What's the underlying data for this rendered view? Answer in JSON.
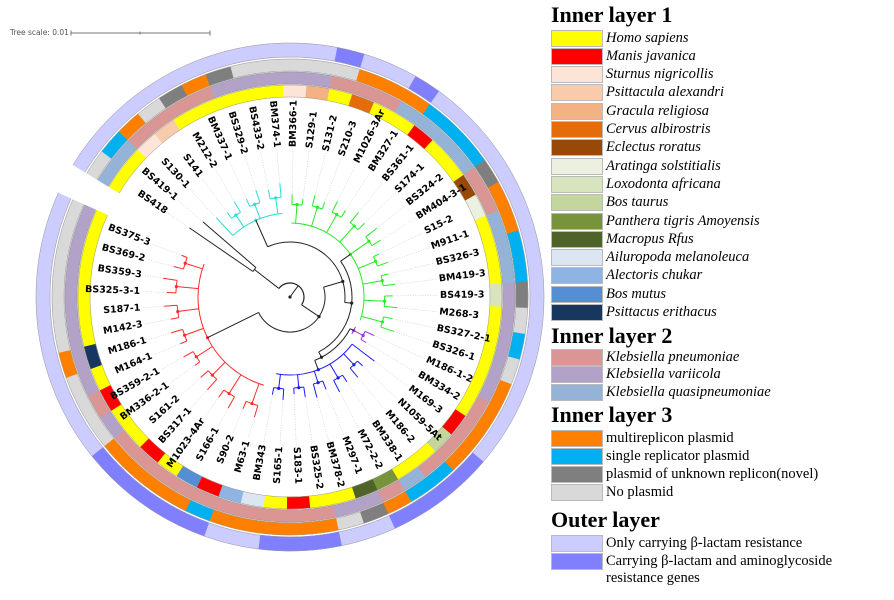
{
  "tree": {
    "scale_label": "Tree scale: 0.01",
    "clade_colors": {
      "red": "#ff2a2a",
      "blue": "#1a1aff",
      "purple": "#9933dd",
      "green": "#22ee22",
      "cyan": "#22e0d0",
      "black": "#222222"
    },
    "leaves": [
      {
        "label": "BS375-3",
        "host": "H",
        "species": "Kv",
        "plasmid": "N",
        "res": "A"
      },
      {
        "label": "BS369-2",
        "host": "H",
        "species": "Kv",
        "plasmid": "N",
        "res": "A"
      },
      {
        "label": "BS359-3",
        "host": "H",
        "species": "Kv",
        "plasmid": "N",
        "res": "A"
      },
      {
        "label": "BS325-3-1",
        "host": "H",
        "species": "Kv",
        "plasmid": "N",
        "res": "A"
      },
      {
        "label": "S187-1",
        "host": "H",
        "species": "Kv",
        "plasmid": "N",
        "res": "A"
      },
      {
        "label": "M142-3",
        "host": "H",
        "species": "Kv",
        "plasmid": "N",
        "res": "A"
      },
      {
        "label": "M186-1",
        "host": "Pe",
        "species": "Kv",
        "plasmid": "MR",
        "res": "A"
      },
      {
        "label": "M164-1",
        "host": "H",
        "species": "Kv",
        "plasmid": "N",
        "res": "A"
      },
      {
        "label": "BS359-2-1",
        "host": "M",
        "species": "Kp",
        "plasmid": "N",
        "res": "A"
      },
      {
        "label": "BM336-2-1",
        "host": "H",
        "species": "Kv",
        "plasmid": "N",
        "res": "A"
      },
      {
        "label": "S161-2",
        "host": "H",
        "species": "Kp",
        "plasmid": "MR",
        "res": "B"
      },
      {
        "label": "BS317-1",
        "host": "M",
        "species": "Kp",
        "plasmid": "MR",
        "res": "B"
      },
      {
        "label": "M1023-4Ar",
        "host": "H",
        "species": "Kp",
        "plasmid": "MR",
        "res": "B"
      },
      {
        "label": "S166-1",
        "host": "Bm",
        "species": "Kp",
        "plasmid": "MR",
        "res": "B"
      },
      {
        "label": "S90-2",
        "host": "M",
        "species": "Kp",
        "plasmid": "SR",
        "res": "B"
      },
      {
        "label": "M63-1",
        "host": "Al",
        "species": "Kp",
        "plasmid": "MR",
        "res": "A"
      },
      {
        "label": "BM343",
        "host": "Ai",
        "species": "Kp",
        "plasmid": "MR",
        "res": "A"
      },
      {
        "label": "S165-1",
        "host": "H",
        "species": "Kp",
        "plasmid": "MR",
        "res": "B"
      },
      {
        "label": "S183-1",
        "host": "M",
        "species": "Kp",
        "plasmid": "MR",
        "res": "B"
      },
      {
        "label": "BS325-2",
        "host": "H",
        "species": "Kp",
        "plasmid": "MR",
        "res": "B"
      },
      {
        "label": "BM378-2",
        "host": "H",
        "species": "Kv",
        "plasmid": "N",
        "res": "A"
      },
      {
        "label": "M297-1",
        "host": "Ma",
        "species": "Kv",
        "plasmid": "UK",
        "res": "A"
      },
      {
        "label": "M72-2-2",
        "host": "Pt",
        "species": "Kp",
        "plasmid": "MR",
        "res": "B"
      },
      {
        "label": "BM338-1",
        "host": "H",
        "species": "Kq",
        "plasmid": "SR",
        "res": "B"
      },
      {
        "label": "M186-2",
        "host": "H",
        "species": "Kp",
        "plasmid": "SR",
        "res": "B"
      },
      {
        "label": "N1059-5At",
        "host": "Bt",
        "species": "Kp",
        "plasmid": "MR",
        "res": "B"
      },
      {
        "label": "M169-3",
        "host": "M",
        "species": "Kp",
        "plasmid": "MR",
        "res": "A"
      },
      {
        "label": "BM334-2",
        "host": "H",
        "species": "Kp",
        "plasmid": "MR",
        "res": "A"
      },
      {
        "label": "M186-1-2",
        "host": "H",
        "species": "Kv",
        "plasmid": "MR",
        "res": "A"
      },
      {
        "label": "BS326-1",
        "host": "H",
        "species": "Kv",
        "plasmid": "N",
        "res": "A"
      },
      {
        "label": "BS327-2-1",
        "host": "H",
        "species": "Kv",
        "plasmid": "SR",
        "res": "A"
      },
      {
        "label": "M268-3",
        "host": "H",
        "species": "Kv",
        "plasmid": "N",
        "res": "A"
      },
      {
        "label": "BS419-3",
        "host": "Lo",
        "species": "Kv",
        "plasmid": "UK",
        "res": "A"
      },
      {
        "label": "BM419-3",
        "host": "H",
        "species": "Kq",
        "plasmid": "SR",
        "res": "A"
      },
      {
        "label": "BS326-3",
        "host": "H",
        "species": "Kq",
        "plasmid": "SR",
        "res": "A"
      },
      {
        "label": "M911-1",
        "host": "H",
        "species": "Kq",
        "plasmid": "MR",
        "res": "A"
      },
      {
        "label": "S15-2",
        "host": "Ar",
        "species": "Kp",
        "plasmid": "MR",
        "res": "A"
      },
      {
        "label": "BM404-3-1",
        "host": "Ec",
        "species": "Kp",
        "plasmid": "UK",
        "res": "A"
      },
      {
        "label": "BS324-2",
        "host": "H",
        "species": "Kq",
        "plasmid": "SR",
        "res": "A"
      },
      {
        "label": "S174-1",
        "host": "H",
        "species": "Kq",
        "plasmid": "SR",
        "res": "A"
      },
      {
        "label": "BS361-1",
        "host": "M",
        "species": "Kq",
        "plasmid": "SR",
        "res": "A"
      },
      {
        "label": "BM327-1",
        "host": "H",
        "species": "Kq",
        "plasmid": "MR",
        "res": "B"
      },
      {
        "label": "M1026-3Ar",
        "host": "H",
        "species": "Kp",
        "plasmid": "MR",
        "res": "A"
      },
      {
        "label": "S210-3",
        "host": "Ce",
        "species": "Kp",
        "plasmid": "MR",
        "res": "A"
      },
      {
        "label": "S131-2",
        "host": "H",
        "species": "Kp",
        "plasmid": "N",
        "res": "B"
      },
      {
        "label": "S129-1",
        "host": "Gr",
        "species": "Kv",
        "plasmid": "N",
        "res": "A"
      },
      {
        "label": "BM366-1",
        "host": "St",
        "species": "Kv",
        "plasmid": "N",
        "res": "A"
      },
      {
        "label": "BM374-1",
        "host": "H",
        "species": "Kv",
        "plasmid": "N",
        "res": "A"
      },
      {
        "label": "BS433-2",
        "host": "H",
        "species": "Kv",
        "plasmid": "N",
        "res": "A"
      },
      {
        "label": "BS329-2",
        "host": "H",
        "species": "Kv",
        "plasmid": "UK",
        "res": "A"
      },
      {
        "label": "BM337-1",
        "host": "H",
        "species": "Kp",
        "plasmid": "MR",
        "res": "A"
      },
      {
        "label": "M212-2",
        "host": "H",
        "species": "Kp",
        "plasmid": "UK",
        "res": "A"
      },
      {
        "label": "S141",
        "host": "Ps",
        "species": "Kp",
        "plasmid": "N",
        "res": "A"
      },
      {
        "label": "S130-1",
        "host": "St",
        "species": "Kp",
        "plasmid": "MR",
        "res": "A"
      },
      {
        "label": "BS419-1",
        "host": "H",
        "species": "Kq",
        "plasmid": "SR",
        "res": "A"
      },
      {
        "label": "BS418",
        "host": "H",
        "species": "Kq",
        "plasmid": "N",
        "res": "A"
      }
    ]
  },
  "legend": {
    "inner1": {
      "title": "Inner layer 1",
      "items": [
        {
          "key": "H",
          "label": "Homo sapiens",
          "color": "#ffff00"
        },
        {
          "key": "M",
          "label": "Manis javanica",
          "color": "#ff0000"
        },
        {
          "key": "St",
          "label": "Sturnus nigricollis",
          "color": "#fce4d6"
        },
        {
          "key": "Ps",
          "label": "Psittacula alexandri",
          "color": "#f8cbad"
        },
        {
          "key": "Gr",
          "label": "Gracula religiosa",
          "color": "#f4b183"
        },
        {
          "key": "Ce",
          "label": "Cervus albirostris",
          "color": "#e46c0a"
        },
        {
          "key": "Ec",
          "label": "Eclectus roratus",
          "color": "#984807"
        },
        {
          "key": "Ar",
          "label": "Aratinga solstitialis",
          "color": "#ebf1de"
        },
        {
          "key": "Lo",
          "label": "Loxodonta africana",
          "color": "#d7e4bd"
        },
        {
          "key": "Bt",
          "label": "Bos taurus",
          "color": "#c3d69b"
        },
        {
          "key": "Pt",
          "label": "Panthera tigris Amoyensis",
          "color": "#77933c"
        },
        {
          "key": "Ma",
          "label": "Macropus Rfus",
          "color": "#4f6228"
        },
        {
          "key": "Ai",
          "label": "Ailuropoda melanoleuca",
          "color": "#dce6f2"
        },
        {
          "key": "Al",
          "label": "Alectoris chukar",
          "color": "#8eb4e3"
        },
        {
          "key": "Bm",
          "label": "Bos mutus",
          "color": "#558ed5"
        },
        {
          "key": "Pe",
          "label": "Psittacus erithacus",
          "color": "#17375e"
        }
      ]
    },
    "inner2": {
      "title": "Inner layer 2",
      "items": [
        {
          "key": "Kp",
          "label": "Klebsiella pneumoniae",
          "color": "#d99694"
        },
        {
          "key": "Kv",
          "label": "Klebsiella variicola",
          "color": "#b3a2c7"
        },
        {
          "key": "Kq",
          "label": "Klebsiella quasipneumoniae",
          "color": "#95b3d7"
        }
      ]
    },
    "inner3": {
      "title": "Inner layer 3",
      "items": [
        {
          "key": "MR",
          "label": "multireplicon plasmid",
          "color": "#ff8000"
        },
        {
          "key": "SR",
          "label": "single replicator plasmid",
          "color": "#00b0f0"
        },
        {
          "key": "UK",
          "label": "plasmid of unknown replicon(novel)",
          "color": "#7f7f7f"
        },
        {
          "key": "N",
          "label": "No plasmid",
          "color": "#d9d9d9"
        }
      ]
    },
    "outer": {
      "title": "Outer layer",
      "items": [
        {
          "key": "A",
          "label": "Only carrying β-lactam resistance",
          "color": "#ccccff"
        },
        {
          "key": "B",
          "label": "Carrying β-lactam and aminoglycoside",
          "label_line2": "resistance genes",
          "color": "#8080ff"
        }
      ]
    }
  }
}
